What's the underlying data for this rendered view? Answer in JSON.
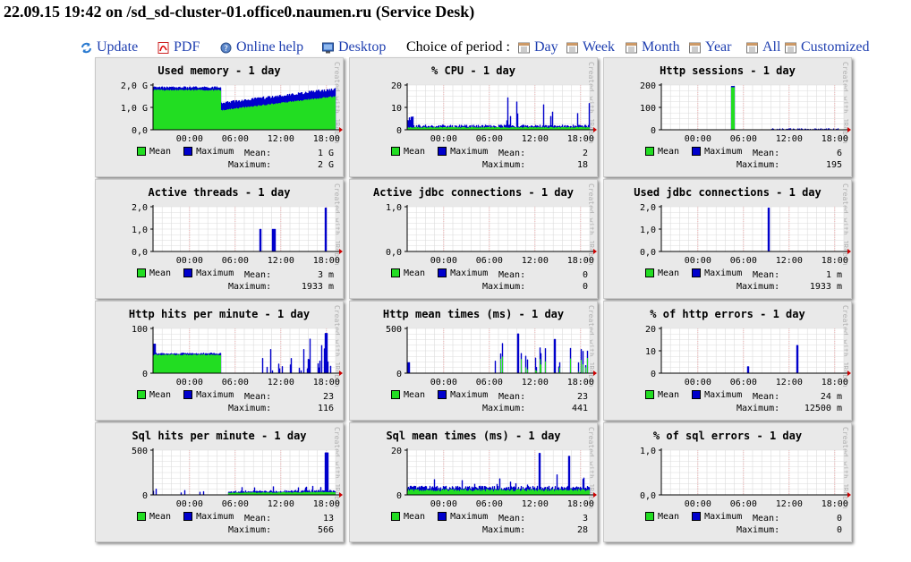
{
  "title": "22.09.15 19:42 on /sd_sd-cluster-01.office0.naumen.ru (Service Desk)",
  "toolbar": {
    "update": "Update",
    "pdf": "PDF",
    "online_help": "Online help",
    "desktop": "Desktop",
    "choice_label": "Choice of period :",
    "day": "Day",
    "week": "Week",
    "month": "Month",
    "year": "Year",
    "all": "All",
    "customized": "Customized"
  },
  "colors": {
    "mean": "#22dd22",
    "maximum": "#0000cc",
    "link": "#1f3fb0",
    "grid": "#e8a0a0"
  },
  "common": {
    "created_with": "Created with JRobin",
    "mean_label": "Mean",
    "maximum_label": "Maximum",
    "stat_mean": "Mean:",
    "stat_max": "Maximum:",
    "x_ticks": [
      "00:00",
      "06:00",
      "12:00",
      "18:00"
    ]
  },
  "charts": [
    {
      "title": "Used memory - 1 day",
      "y_ticks": [
        "2,0 G",
        "1,0 G",
        "0,0"
      ],
      "mean_value": "1 G",
      "max_value": "2 G",
      "chart_data": {
        "type": "area",
        "unit": "bytes",
        "ylim": [
          0,
          2
        ],
        "series_pattern": "memory"
      }
    },
    {
      "title": "% CPU - 1 day",
      "y_ticks": [
        "20",
        "10",
        "0"
      ],
      "mean_value": "2",
      "max_value": "18",
      "chart_data": {
        "type": "area",
        "ylim": [
          0,
          20
        ],
        "series_pattern": "cpu"
      }
    },
    {
      "title": "Http sessions - 1 day",
      "y_ticks": [
        "200",
        "100",
        "0"
      ],
      "mean_value": "6",
      "max_value": "195",
      "chart_data": {
        "type": "area",
        "ylim": [
          0,
          200
        ],
        "series_pattern": "sessions"
      }
    },
    {
      "title": "Active threads - 1 day",
      "y_ticks": [
        "2,0",
        "1,0",
        "0,0"
      ],
      "mean_value": "3 m",
      "max_value": "1933 m",
      "chart_data": {
        "type": "area",
        "ylim": [
          0,
          2
        ],
        "series_pattern": "threads"
      }
    },
    {
      "title": "Active jdbc connections - 1 day",
      "y_ticks": [
        "1,0",
        "0,0"
      ],
      "mean_value": "0",
      "max_value": "0",
      "chart_data": {
        "type": "area",
        "ylim": [
          0,
          1
        ],
        "series_pattern": "none"
      }
    },
    {
      "title": "Used jdbc connections - 1 day",
      "y_ticks": [
        "2,0",
        "1,0",
        "0,0"
      ],
      "mean_value": "1 m",
      "max_value": "1933 m",
      "chart_data": {
        "type": "area",
        "ylim": [
          0,
          2
        ],
        "series_pattern": "jdbcused"
      }
    },
    {
      "title": "Http hits per minute - 1 day",
      "y_ticks": [
        "100",
        "0"
      ],
      "mean_value": "23",
      "max_value": "116",
      "chart_data": {
        "type": "area",
        "ylim": [
          0,
          130
        ],
        "series_pattern": "hits"
      }
    },
    {
      "title": "Http mean times (ms) - 1 day",
      "y_ticks": [
        "500",
        "0"
      ],
      "mean_value": "23",
      "max_value": "441",
      "chart_data": {
        "type": "area",
        "ylim": [
          0,
          500
        ],
        "series_pattern": "httptimes"
      }
    },
    {
      "title": "% of http errors - 1 day",
      "y_ticks": [
        "20",
        "10",
        "0"
      ],
      "mean_value": "24 m",
      "max_value": "12500 m",
      "chart_data": {
        "type": "area",
        "ylim": [
          0,
          20
        ],
        "series_pattern": "httperr"
      }
    },
    {
      "title": "Sql hits per minute - 1 day",
      "y_ticks": [
        "500",
        "0"
      ],
      "mean_value": "13",
      "max_value": "566",
      "chart_data": {
        "type": "area",
        "ylim": [
          0,
          600
        ],
        "series_pattern": "sqlhits"
      }
    },
    {
      "title": "Sql mean times (ms) - 1 day",
      "y_ticks": [
        "20",
        "0"
      ],
      "mean_value": "3",
      "max_value": "28",
      "chart_data": {
        "type": "area",
        "ylim": [
          0,
          30
        ],
        "series_pattern": "sqltimes"
      }
    },
    {
      "title": "% of sql errors - 1 day",
      "y_ticks": [
        "1,0",
        "0,0"
      ],
      "mean_value": "0",
      "max_value": "0",
      "chart_data": {
        "type": "area",
        "ylim": [
          0,
          1
        ],
        "series_pattern": "none"
      }
    }
  ]
}
